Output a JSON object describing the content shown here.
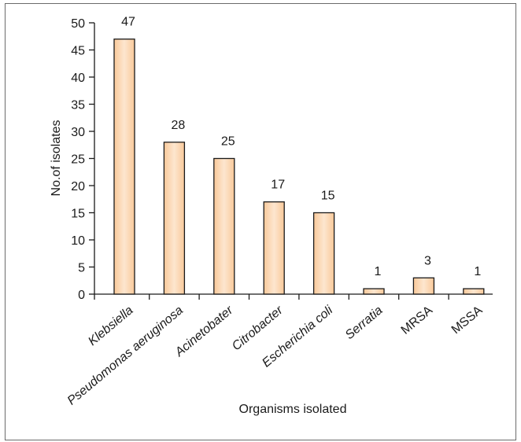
{
  "chart_data": {
    "type": "bar",
    "categories": [
      "Klebsiella",
      "Pseudomonas aeruginosa",
      "Acinetobater",
      "Citrobacter",
      "Escherichia coli",
      "Serratia",
      "MRSA",
      "MSSA"
    ],
    "italic_categories": [
      true,
      true,
      true,
      true,
      true,
      true,
      false,
      false
    ],
    "values": [
      47,
      28,
      25,
      17,
      15,
      1,
      3,
      1
    ],
    "data_labels": [
      "47",
      "28",
      "25",
      "17",
      "15",
      "1",
      "3",
      "1"
    ],
    "xlabel": "Organisms isolated",
    "ylabel": "No.of isolates",
    "ylim": [
      0,
      50
    ],
    "yticks": [
      0,
      5,
      10,
      15,
      20,
      25,
      30,
      35,
      40,
      45,
      50
    ],
    "grid": false,
    "bar_color": "#f9c99a",
    "bar_highlight_color": "#fde6cf"
  }
}
